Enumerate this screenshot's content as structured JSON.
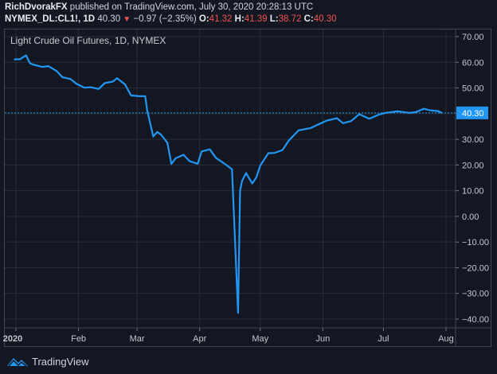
{
  "header": {
    "author": "RichDvorakFX",
    "published_text": " published on TradingView.com, July 30, 2020 20:28:13 UTC",
    "symbol": "NYMEX_DL:CL1!, 1D",
    "last": "40.30",
    "change": "−0.97 (−2.35%)",
    "change_icon": "down-triangle-icon",
    "o_label": "O:",
    "o_value": "41.32",
    "h_label": "H:",
    "h_value": "41.39",
    "l_label": "L:",
    "l_value": "38.72",
    "c_label": "C:",
    "c_value": "40.30"
  },
  "footer": {
    "brand": "TradingView",
    "logo_icon": "tradingview-logo-icon"
  },
  "colors": {
    "background": "#131722",
    "line": "#2196f3",
    "grid": "#2a2e39",
    "down": "#ef5350",
    "price_tag": "#2196f3"
  },
  "chart_data": {
    "type": "line",
    "title": "Light Crude Oil Futures, 1D, NYMEX",
    "xlabel": "",
    "ylabel": "",
    "x_ticks": [
      "2020",
      "Feb",
      "Mar",
      "Apr",
      "May",
      "Jun",
      "Jul",
      "Aug"
    ],
    "y_ticks": [
      "70.00",
      "60.00",
      "50.00",
      "40.00",
      "30.00",
      "20.00",
      "10.00",
      "0.00",
      "-10.00",
      "-20.00",
      "-30.00",
      "-40.00"
    ],
    "ylim": [
      -42,
      72
    ],
    "grid": true,
    "last_price_label": "40.30",
    "series": [
      {
        "name": "CL1! Close",
        "x": [
          "2019-12-31",
          "2020-01-03",
          "2020-01-06",
          "2020-01-08",
          "2020-01-10",
          "2020-01-14",
          "2020-01-17",
          "2020-01-21",
          "2020-01-24",
          "2020-01-28",
          "2020-01-31",
          "2020-02-04",
          "2020-02-07",
          "2020-02-11",
          "2020-02-14",
          "2020-02-18",
          "2020-02-20",
          "2020-02-24",
          "2020-02-27",
          "2020-03-02",
          "2020-03-05",
          "2020-03-06",
          "2020-03-09",
          "2020-03-11",
          "2020-03-13",
          "2020-03-16",
          "2020-03-18",
          "2020-03-20",
          "2020-03-24",
          "2020-03-27",
          "2020-03-31",
          "2020-04-02",
          "2020-04-06",
          "2020-04-09",
          "2020-04-14",
          "2020-04-17",
          "2020-04-20",
          "2020-04-21",
          "2020-04-22",
          "2020-04-24",
          "2020-04-27",
          "2020-04-29",
          "2020-05-01",
          "2020-05-05",
          "2020-05-08",
          "2020-05-12",
          "2020-05-15",
          "2020-05-20",
          "2020-05-26",
          "2020-05-29",
          "2020-06-03",
          "2020-06-08",
          "2020-06-11",
          "2020-06-15",
          "2020-06-19",
          "2020-06-24",
          "2020-06-29",
          "2020-07-02",
          "2020-07-08",
          "2020-07-14",
          "2020-07-17",
          "2020-07-21",
          "2020-07-24",
          "2020-07-28",
          "2020-07-30"
        ],
        "values": [
          61.1,
          61.2,
          62.7,
          59.6,
          59.0,
          58.2,
          58.5,
          56.7,
          54.2,
          53.5,
          51.6,
          50.1,
          50.3,
          49.6,
          51.9,
          52.5,
          53.8,
          51.4,
          47.1,
          46.8,
          46.8,
          41.3,
          31.1,
          32.9,
          31.7,
          28.7,
          20.4,
          22.6,
          24.0,
          21.5,
          20.5,
          25.3,
          26.1,
          22.8,
          20.1,
          18.3,
          -37.6,
          10.0,
          13.8,
          16.9,
          12.8,
          15.1,
          19.8,
          24.6,
          24.7,
          25.8,
          29.4,
          33.5,
          34.4,
          35.5,
          37.3,
          38.2,
          36.3,
          37.1,
          39.8,
          38.0,
          39.7,
          40.3,
          40.9,
          40.3,
          40.6,
          41.9,
          41.3,
          41.0,
          40.3
        ]
      }
    ]
  }
}
